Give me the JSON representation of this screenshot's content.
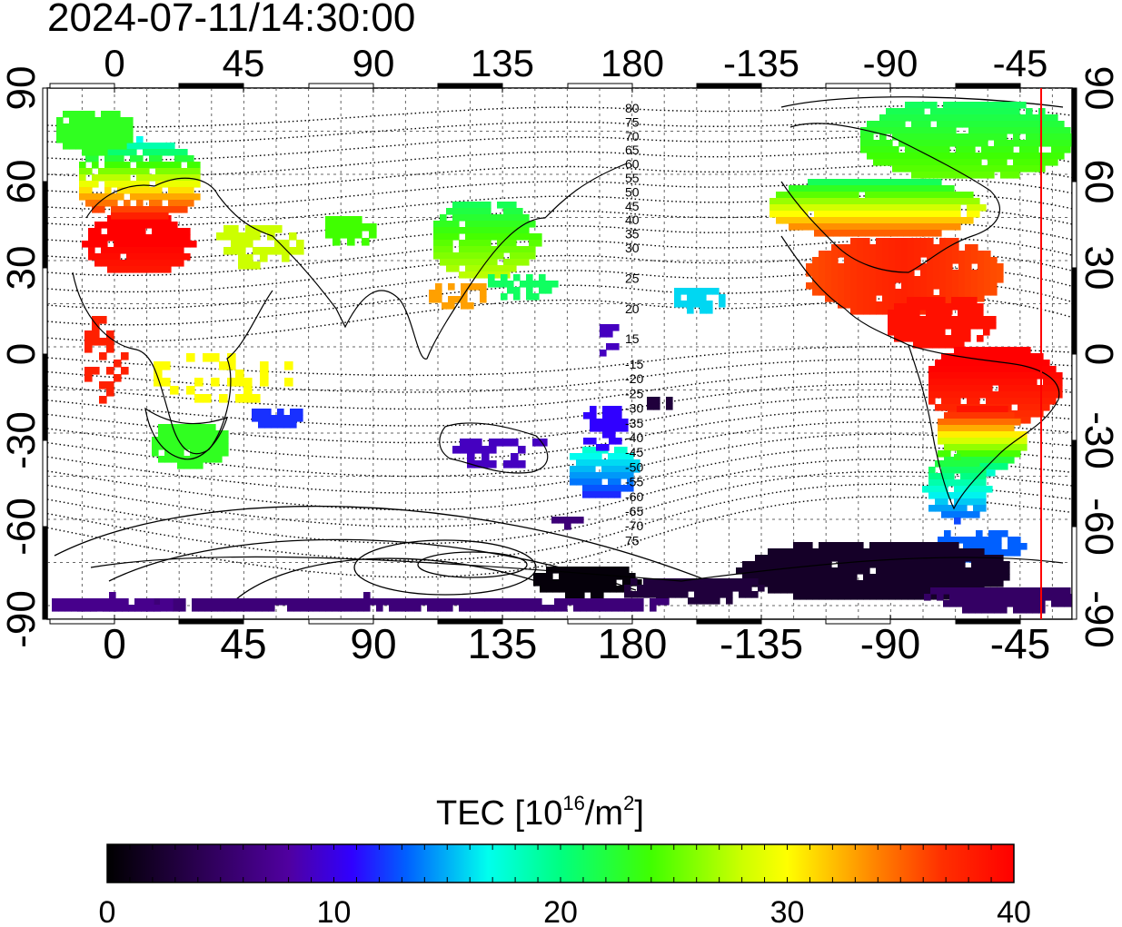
{
  "timestamp": "2024-07-11/14:30:00",
  "map": {
    "lon_ticks_top": [
      "0",
      "45",
      "90",
      "135",
      "180",
      "-135",
      "-90",
      "-45"
    ],
    "lon_ticks_bottom": [
      "0",
      "45",
      "90",
      "135",
      "180",
      "-135",
      "-90",
      "-45"
    ],
    "lat_ticks_left": [
      "90",
      "60",
      "30",
      "0",
      "-30",
      "-60",
      "-90"
    ],
    "lat_ticks_right": [
      "90",
      "60",
      "30",
      "0",
      "-30",
      "-60",
      "-90"
    ],
    "contour_labels_north": [
      "80",
      "75",
      "70",
      "65",
      "60",
      "55",
      "50",
      "45",
      "40",
      "35",
      "30",
      "25",
      "20",
      "15"
    ],
    "contour_labels_south": [
      "-15",
      "-20",
      "-25",
      "-30",
      "-35",
      "-40",
      "-45",
      "-50",
      "-55",
      "-60",
      "-65",
      "-70",
      "75"
    ],
    "terminator_color": "#ff0000"
  },
  "colorbar": {
    "title_prefix": "TEC  [10",
    "title_sup1": "16",
    "title_mid": "/m",
    "title_sup2": "2",
    "title_suffix": "]",
    "tick_labels": [
      "0",
      "10",
      "20",
      "30",
      "40"
    ],
    "min": 0,
    "max": 40
  }
}
